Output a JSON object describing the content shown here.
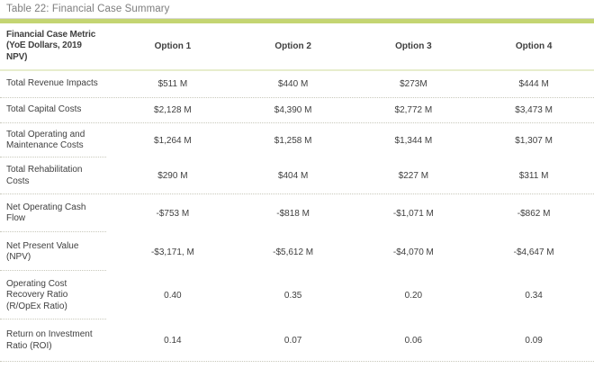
{
  "caption": "Table 22: Financial Case Summary",
  "colors": {
    "accent_bar": "#c4d572",
    "header_rule": "#e7edcd",
    "row_divider": "#c8c8bb",
    "caption_text": "#7d7d7d",
    "body_text": "#3f3f3f"
  },
  "table": {
    "header": {
      "metric": "Financial Case Metric\n(YoE Dollars, 2019\nNPV)",
      "options": [
        "Option 1",
        "Option 2",
        "Option 3",
        "Option 4"
      ]
    },
    "rows": [
      {
        "metric": "Total Revenue Impacts",
        "values": [
          "$511 M",
          "$440 M",
          "$273M",
          "$444 M"
        ]
      },
      {
        "metric": "Total Capital Costs",
        "values": [
          "$2,128 M",
          "$4,390 M",
          "$2,772 M",
          "$3,473 M"
        ]
      },
      {
        "metric": "Total Operating and\nMaintenance Costs",
        "values": [
          "$1,264 M",
          "$1,258 M",
          "$1,344 M",
          "$1,307 M"
        ]
      },
      {
        "metric": "Total Rehabilitation\nCosts",
        "values": [
          "$290 M",
          "$404 M",
          "$227 M",
          "$311 M"
        ]
      },
      {
        "metric": "Net Operating Cash\nFlow",
        "values": [
          "-$753 M",
          "-$818 M",
          "-$1,071 M",
          "-$862 M"
        ]
      },
      {
        "metric": "Net Present Value\n(NPV)",
        "values": [
          "-$3,171, M",
          "-$5,612 M",
          "-$4,070 M",
          "-$4,647 M"
        ]
      },
      {
        "metric": "Operating Cost\nRecovery Ratio\n(R/OpEx Ratio)",
        "values": [
          "0.40",
          "0.35",
          "0.20",
          "0.34"
        ]
      },
      {
        "metric": "Return on Investment\nRatio (ROI)",
        "values": [
          "0.14",
          "0.07",
          "0.06",
          "0.09"
        ]
      }
    ]
  }
}
